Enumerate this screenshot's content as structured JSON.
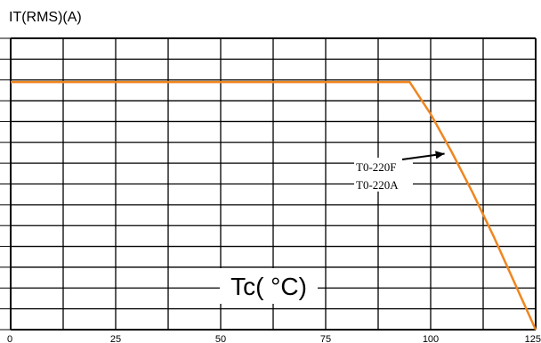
{
  "chart_data": {
    "type": "line",
    "ylabel": "IT(RMS)(A)",
    "xlabel": "Tc( °C)",
    "x_ticks": [
      "0",
      "25",
      "50",
      "75",
      "100",
      "125"
    ],
    "xlim": [
      0,
      125
    ],
    "ylim": [
      0,
      1
    ],
    "grid": true,
    "series": [
      {
        "name": "",
        "points": [
          {
            "x": 0,
            "y": 0.85
          },
          {
            "x": 95,
            "y": 0.85
          },
          {
            "x": 100,
            "y": 0.74
          },
          {
            "x": 105,
            "y": 0.61
          },
          {
            "x": 110,
            "y": 0.47
          },
          {
            "x": 115,
            "y": 0.32
          },
          {
            "x": 120,
            "y": 0.16
          },
          {
            "x": 125,
            "y": 0
          }
        ]
      }
    ],
    "annotation": {
      "lines": [
        "T0-220F",
        "T0-220A"
      ],
      "points_to": {
        "x": 105,
        "y": 0.61
      }
    },
    "colors": {
      "curve": "#f0861f",
      "grid": "#000000",
      "text": "#000000"
    }
  }
}
